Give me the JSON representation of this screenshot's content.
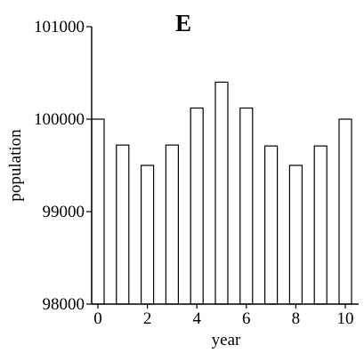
{
  "chart_data": {
    "type": "bar",
    "title": "E",
    "xlabel": "year",
    "ylabel": "population",
    "categories": [
      "0",
      "1",
      "2",
      "3",
      "4",
      "5",
      "6",
      "7",
      "8",
      "9",
      "10"
    ],
    "values": [
      100000,
      99720,
      99500,
      99720,
      100120,
      100400,
      100120,
      99710,
      99500,
      99710,
      100000
    ],
    "xticks": [
      "0",
      "2",
      "4",
      "6",
      "8",
      "10"
    ],
    "yticks": [
      "98000",
      "99000",
      "100000",
      "101000"
    ],
    "ylim": [
      98000,
      101000
    ],
    "grid": false,
    "bar_fill": "#ffffff",
    "bar_stroke": "#000000"
  }
}
